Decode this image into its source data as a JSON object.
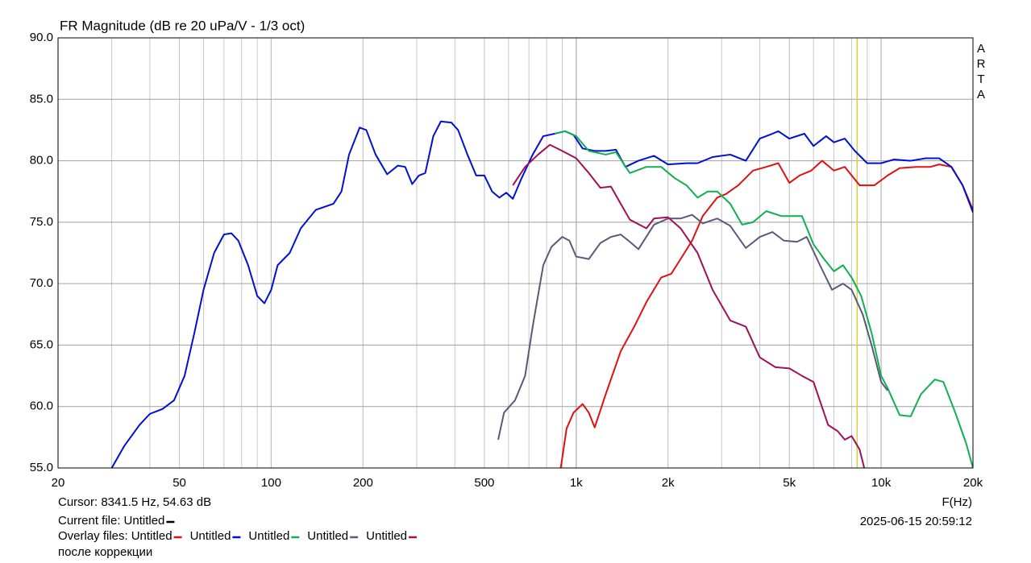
{
  "chart_data": {
    "type": "line",
    "title": "FR Magnitude (dB re 20 uPa/V - 1/3 oct)",
    "x_label": "F(Hz)",
    "watermark": "ARTA",
    "x_scale": "log",
    "grid": true,
    "minor_grid": true,
    "xlim": [
      20,
      20000
    ],
    "ylim": [
      55,
      90
    ],
    "xticks": [
      20,
      50,
      100,
      200,
      500,
      {
        "value": 1000,
        "label": "1k"
      },
      {
        "value": 2000,
        "label": "2k"
      },
      {
        "value": 5000,
        "label": "5k"
      },
      {
        "value": 10000,
        "label": "10k"
      },
      {
        "value": 20000,
        "label": "20k"
      }
    ],
    "yticks": [
      {
        "value": 55,
        "label": "55.0"
      },
      {
        "value": 60,
        "label": "60.0"
      },
      {
        "value": 65,
        "label": "65.0"
      },
      {
        "value": 70,
        "label": "70.0"
      },
      {
        "value": 75,
        "label": "75.0"
      },
      {
        "value": 80,
        "label": "80.0"
      },
      {
        "value": 85,
        "label": "85.0"
      },
      {
        "value": 90,
        "label": "90.0"
      }
    ],
    "cursor": {
      "label": "Cursor: 8341.5 Hz, 54.63 dB",
      "x": 8341.5,
      "color": "#d8d040"
    },
    "current_file_label": "Current file:",
    "current_file": "Untitled",
    "current_file_color": "#000000",
    "overlay_label": "Overlay files:",
    "note": "после коррекции",
    "timestamp": "2025-06-15  20:59:12",
    "series": [
      {
        "name": "Untitled",
        "color": "#e01010",
        "x": [
          890,
          930,
          980,
          1050,
          1100,
          1150,
          1250,
          1400,
          1550,
          1700,
          1900,
          2050,
          2200,
          2400,
          2600,
          2900,
          3100,
          3400,
          3800,
          4200,
          4600,
          5000,
          5400,
          5900,
          6400,
          7000,
          7600,
          8500,
          9500,
          10500,
          11500,
          13000,
          14500,
          15500,
          17000,
          18500,
          20000
        ],
        "values": [
          55,
          58.2,
          59.5,
          60.2,
          59.5,
          58.3,
          61,
          64.5,
          66.5,
          68.5,
          70.5,
          70.8,
          72,
          73.5,
          75.5,
          77,
          77.3,
          78,
          79.2,
          79.5,
          79.8,
          78.2,
          78.8,
          79.2,
          80,
          79.2,
          79.5,
          78,
          78,
          78.8,
          79.4,
          79.5,
          79.5,
          79.7,
          79.5,
          78,
          76
        ]
      },
      {
        "name": "Untitled",
        "color": "#0010d0",
        "x": [
          30,
          33,
          37,
          40,
          44,
          48,
          52,
          56,
          60,
          65,
          70,
          74,
          78,
          84,
          90,
          95,
          100,
          105,
          115,
          125,
          140,
          160,
          170,
          180,
          195,
          205,
          220,
          240,
          260,
          275,
          290,
          305,
          320,
          340,
          360,
          390,
          410,
          440,
          470,
          500,
          530,
          560,
          590,
          620,
          660,
          720,
          780,
          850,
          920,
          980,
          1050,
          1150,
          1250,
          1350,
          1450,
          1600,
          1800,
          2000,
          2300,
          2500,
          2800,
          3200,
          3600,
          4000,
          4400,
          4600,
          5000,
          5600,
          6000,
          6600,
          7000,
          7600,
          8200,
          9000,
          10000,
          11000,
          12500,
          14000,
          15500,
          17000,
          18500,
          20000
        ],
        "values": [
          55,
          56.8,
          58.5,
          59.4,
          59.8,
          60.5,
          62.5,
          66,
          69.5,
          72.5,
          74,
          74.1,
          73.5,
          71.5,
          69,
          68.4,
          69.5,
          71.5,
          72.5,
          74.5,
          76,
          76.5,
          77.5,
          80.5,
          82.7,
          82.5,
          80.5,
          78.9,
          79.6,
          79.5,
          78.1,
          78.8,
          79,
          82,
          83.2,
          83.1,
          82.5,
          80.5,
          78.8,
          78.8,
          77.5,
          77,
          77.4,
          76.9,
          78.5,
          80.5,
          82,
          82.2,
          82.4,
          82.1,
          81,
          80.8,
          80.8,
          80.9,
          79.5,
          80,
          80.4,
          79.7,
          79.8,
          79.8,
          80.3,
          80.5,
          80,
          81.8,
          82.2,
          82.4,
          81.8,
          82.2,
          81.2,
          82,
          81.5,
          81.8,
          80.8,
          79.8,
          79.8,
          80.1,
          80,
          80.2,
          80.2,
          79.5,
          78,
          75.8
        ]
      },
      {
        "name": "Untitled",
        "color": "#10b050",
        "x": [
          850,
          920,
          1000,
          1100,
          1250,
          1350,
          1500,
          1700,
          1900,
          2100,
          2300,
          2500,
          2700,
          2900,
          3200,
          3500,
          3800,
          4200,
          4700,
          5200,
          5500,
          6000,
          6500,
          7000,
          7500,
          8000,
          8600,
          9300,
          10000,
          10500,
          11500,
          12500,
          13500,
          15000,
          16000,
          17500,
          19000,
          20000
        ],
        "values": [
          82.2,
          82.4,
          82,
          80.8,
          80.5,
          80.7,
          79,
          79.5,
          79.5,
          78.6,
          78,
          77,
          77.5,
          77.5,
          76.5,
          74.8,
          75,
          75.9,
          75.5,
          75.5,
          75.5,
          73.2,
          72,
          71,
          71.5,
          70.5,
          69,
          66,
          62.5,
          61.5,
          59.3,
          59.2,
          61,
          62.2,
          62,
          59.5,
          57,
          55
        ]
      },
      {
        "name": "Untitled",
        "color": "#5a5a78",
        "x": [
          555,
          580,
          630,
          680,
          720,
          780,
          830,
          900,
          950,
          1000,
          1100,
          1200,
          1300,
          1400,
          1500,
          1600,
          1800,
          2000,
          2200,
          2400,
          2600,
          2900,
          3200,
          3600,
          4000,
          4400,
          4800,
          5300,
          5700,
          6300,
          6900,
          7500,
          8000,
          8700,
          9300,
          10000,
          10500
        ],
        "values": [
          57.3,
          59.5,
          60.5,
          62.5,
          66.5,
          71.5,
          73,
          73.8,
          73.5,
          72.2,
          72,
          73.3,
          73.8,
          74,
          73.4,
          72.8,
          74.8,
          75.3,
          75.3,
          75.6,
          74.9,
          75.3,
          74.7,
          72.9,
          73.8,
          74.2,
          73.5,
          73.4,
          73.8,
          71.5,
          69.5,
          70,
          69.5,
          67.5,
          65,
          62,
          61.3
        ]
      },
      {
        "name": "Untitled",
        "color": "#a0105a",
        "x": [
          620,
          680,
          750,
          820,
          900,
          1000,
          1100,
          1200,
          1300,
          1400,
          1500,
          1700,
          1800,
          2000,
          2200,
          2500,
          2800,
          3200,
          3600,
          4000,
          4500,
          5000,
          5500,
          6000,
          6700,
          7200,
          7600,
          8000,
          8500,
          8800
        ],
        "values": [
          78,
          79.5,
          80.5,
          81.3,
          80.8,
          80.2,
          79,
          77.8,
          77.9,
          76.5,
          75.2,
          74.5,
          75.3,
          75.4,
          74.5,
          72.5,
          69.5,
          67,
          66.5,
          64,
          63.2,
          63.1,
          62.5,
          62,
          58.5,
          58,
          57.3,
          57.6,
          56.5,
          55
        ]
      }
    ]
  }
}
